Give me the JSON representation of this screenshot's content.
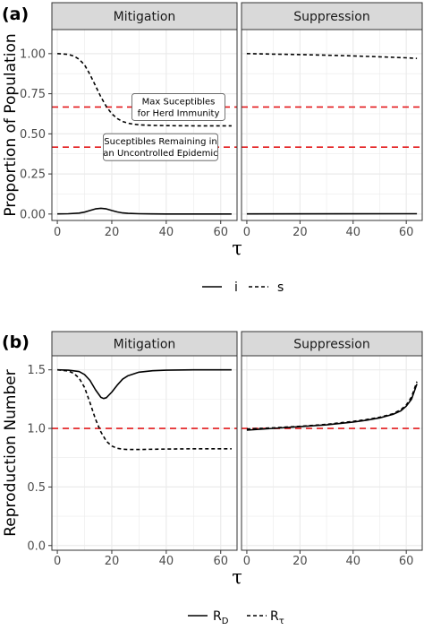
{
  "chart_data": [
    {
      "panel_label": "(a)",
      "type": "line",
      "facets": [
        "Mitigation",
        "Suppression"
      ],
      "ylabel": "Proportion of Population",
      "xlabel": "τ",
      "xlim": [
        -2,
        66
      ],
      "ylim": [
        -0.04,
        1.15
      ],
      "xticks": [
        0,
        20,
        40,
        60
      ],
      "yticks": [
        0,
        0.25,
        0.5,
        0.75,
        1.0
      ],
      "ytick_labels": [
        "0.00",
        "0.25",
        "0.50",
        "0.75",
        "1.00"
      ],
      "grid": true,
      "hlines": [
        {
          "y": 0.667,
          "color": "#e41a1c",
          "style": "dashed",
          "label": [
            "Max Suceptibles",
            "for Herd Immunity"
          ]
        },
        {
          "y": 0.417,
          "color": "#e41a1c",
          "style": "dashed",
          "label": [
            "Suceptibles Remaining in",
            "an Uncontrolled Epidemic"
          ]
        }
      ],
      "series": {
        "Mitigation": [
          {
            "name": "i",
            "style": "solid",
            "x": [
              0,
              4,
              8,
              10,
              12,
              14,
              16,
              18,
              20,
              22,
              24,
              26,
              30,
              35,
              40,
              50,
              64
            ],
            "y": [
              0.001,
              0.002,
              0.006,
              0.012,
              0.022,
              0.032,
              0.036,
              0.032,
              0.022,
              0.013,
              0.007,
              0.004,
              0.002,
              0.001,
              0.0,
              0.0,
              0.0
            ]
          },
          {
            "name": "s",
            "style": "dashed",
            "x": [
              0,
              4,
              6,
              8,
              10,
              12,
              14,
              16,
              18,
              20,
              22,
              24,
              26,
              28,
              30,
              35,
              40,
              50,
              64
            ],
            "y": [
              1.0,
              0.995,
              0.985,
              0.965,
              0.93,
              0.87,
              0.8,
              0.73,
              0.67,
              0.625,
              0.595,
              0.577,
              0.566,
              0.56,
              0.556,
              0.553,
              0.551,
              0.55,
              0.55
            ]
          }
        ],
        "Suppression": [
          {
            "name": "i",
            "style": "solid",
            "x": [
              0,
              64
            ],
            "y": [
              0.001,
              0.002
            ]
          },
          {
            "name": "s",
            "style": "dashed",
            "x": [
              0,
              10,
              20,
              30,
              40,
              50,
              60,
              64
            ],
            "y": [
              1.0,
              0.997,
              0.994,
              0.99,
              0.986,
              0.98,
              0.974,
              0.97
            ]
          }
        ]
      },
      "legend": [
        {
          "name": "i",
          "style": "solid"
        },
        {
          "name": "s",
          "style": "dashed"
        }
      ]
    },
    {
      "panel_label": "(b)",
      "type": "line",
      "facets": [
        "Mitigation",
        "Suppression"
      ],
      "ylabel": "Reproduction Number",
      "xlabel": "τ",
      "xlim": [
        -2,
        66
      ],
      "ylim": [
        -0.04,
        1.62
      ],
      "xticks": [
        0,
        20,
        40,
        60
      ],
      "yticks": [
        0,
        0.5,
        1.0,
        1.5
      ],
      "ytick_labels": [
        "0.0",
        "0.5",
        "1.0",
        "1.5"
      ],
      "grid": true,
      "hlines": [
        {
          "y": 1.0,
          "color": "#e41a1c",
          "style": "dashed"
        }
      ],
      "series": {
        "Mitigation": [
          {
            "name": "R_D",
            "style": "solid",
            "x": [
              0,
              4,
              8,
              10,
              12,
              14,
              16,
              17,
              18,
              20,
              22,
              24,
              26,
              30,
              35,
              40,
              50,
              64
            ],
            "y": [
              1.5,
              1.497,
              1.485,
              1.46,
              1.41,
              1.33,
              1.265,
              1.255,
              1.262,
              1.31,
              1.37,
              1.42,
              1.45,
              1.48,
              1.492,
              1.497,
              1.5,
              1.5
            ]
          },
          {
            "name": "R_τ",
            "style": "dashed",
            "x": [
              0,
              4,
              6,
              8,
              10,
              12,
              14,
              16,
              18,
              20,
              22,
              24,
              26,
              30,
              35,
              40,
              50,
              64
            ],
            "y": [
              1.5,
              1.49,
              1.47,
              1.43,
              1.35,
              1.22,
              1.08,
              0.97,
              0.89,
              0.85,
              0.83,
              0.823,
              0.82,
              0.82,
              0.822,
              0.824,
              0.826,
              0.826
            ]
          }
        ],
        "Suppression": [
          {
            "name": "R_D",
            "style": "solid",
            "x": [
              0,
              10,
              20,
              30,
              40,
              45,
              50,
              55,
              58,
              60,
              62,
              64
            ],
            "y": [
              0.985,
              1.0,
              1.015,
              1.03,
              1.055,
              1.07,
              1.09,
              1.12,
              1.15,
              1.19,
              1.25,
              1.38
            ]
          },
          {
            "name": "R_τ",
            "style": "dashed",
            "x": [
              0,
              10,
              20,
              30,
              40,
              45,
              50,
              55,
              58,
              60,
              62,
              64
            ],
            "y": [
              0.995,
              1.005,
              1.018,
              1.035,
              1.06,
              1.075,
              1.095,
              1.125,
              1.16,
              1.2,
              1.27,
              1.4
            ]
          }
        ]
      },
      "legend": [
        {
          "name": "R",
          "sub": "D",
          "style": "solid"
        },
        {
          "name": "R",
          "sub": "τ",
          "style": "dashed"
        }
      ]
    }
  ],
  "colors": {
    "panel_background": "#ffffff",
    "grid": "#ebebeb",
    "strip_background": "#d9d9d9",
    "border": "#333333",
    "reference_line": "#e41a1c",
    "series": "#000000"
  }
}
